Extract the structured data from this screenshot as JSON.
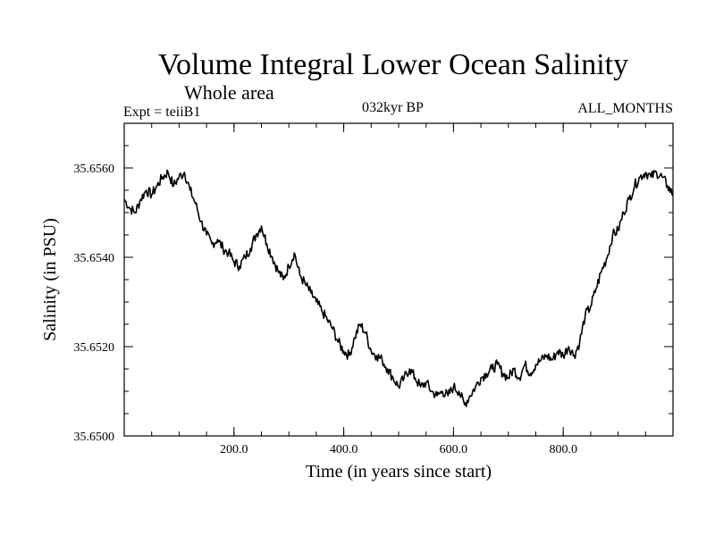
{
  "header": {
    "title": "Volume Integral Lower Ocean Salinity",
    "subtitle": "Whole area",
    "experiment": "Expt = teiiB1",
    "period": "032kyr BP",
    "months": "ALL_MONTHS"
  },
  "chart_data": {
    "type": "line",
    "title": "Volume Integral Lower Ocean Salinity",
    "subtitle": "Whole area",
    "xlabel": "Time (in years since start)",
    "ylabel": "Salinity (in PSU)",
    "xlim": [
      0,
      1000
    ],
    "ylim": [
      35.65,
      35.657
    ],
    "xticks": [
      200,
      400,
      600,
      800
    ],
    "xtick_labels": [
      "200.0",
      "400.0",
      "600.0",
      "800.0"
    ],
    "yticks": [
      35.65,
      35.652,
      35.654,
      35.656
    ],
    "ytick_labels": [
      "35.6500",
      "35.6520",
      "35.6540",
      "35.6560"
    ],
    "grid": false,
    "line_color": "#000000",
    "series": [
      {
        "x": [
          0,
          10,
          20,
          30,
          40,
          50,
          60,
          70,
          80,
          90,
          100,
          110,
          120,
          130,
          140,
          150,
          160,
          170,
          180,
          190,
          200,
          210,
          220,
          230,
          240,
          250,
          260,
          270,
          280,
          290,
          300,
          310,
          320,
          330,
          340,
          350,
          360,
          370,
          380,
          390,
          400,
          410,
          420,
          430,
          440,
          450,
          460,
          470,
          480,
          490,
          500,
          510,
          520,
          530,
          540,
          550,
          560,
          570,
          580,
          590,
          600,
          610,
          620,
          630,
          640,
          650,
          660,
          670,
          680,
          690,
          700,
          710,
          720,
          730,
          740,
          750,
          760,
          770,
          780,
          790,
          800,
          810,
          820,
          830,
          840,
          850,
          860,
          870,
          880,
          890,
          900,
          910,
          920,
          930,
          940,
          950,
          960,
          970,
          980,
          990,
          1000
        ],
        "values": [
          35.6553,
          35.6551,
          35.655,
          35.6553,
          35.6555,
          35.6554,
          35.6556,
          35.6558,
          35.6559,
          35.6556,
          35.6558,
          35.6559,
          35.6555,
          35.6552,
          35.6548,
          35.6545,
          35.6543,
          35.6544,
          35.6542,
          35.6541,
          35.6539,
          35.6538,
          35.654,
          35.6542,
          35.6545,
          35.6547,
          35.6543,
          35.654,
          35.6537,
          35.6535,
          35.6538,
          35.6541,
          35.6536,
          35.6534,
          35.6532,
          35.653,
          35.6528,
          35.6526,
          35.6524,
          35.6521,
          35.6519,
          35.6518,
          35.6522,
          35.6525,
          35.6523,
          35.6519,
          35.6518,
          35.6517,
          35.6515,
          35.6513,
          35.6511,
          35.6513,
          35.6515,
          35.6513,
          35.6511,
          35.6512,
          35.651,
          35.6509,
          35.651,
          35.6509,
          35.6511,
          35.651,
          35.6507,
          35.6509,
          35.6511,
          35.6513,
          35.6514,
          35.6515,
          35.6516,
          35.6514,
          35.6513,
          35.6515,
          35.6513,
          35.6516,
          35.6514,
          35.6516,
          35.6517,
          35.6518,
          35.6517,
          35.6519,
          35.6518,
          35.652,
          35.6518,
          35.6521,
          35.6527,
          35.6529,
          35.6533,
          35.6537,
          35.654,
          35.6545,
          35.6546,
          35.655,
          35.6553,
          35.6556,
          35.6558,
          35.6559,
          35.6558,
          35.6559,
          35.6558,
          35.6556,
          35.6554
        ]
      }
    ]
  }
}
